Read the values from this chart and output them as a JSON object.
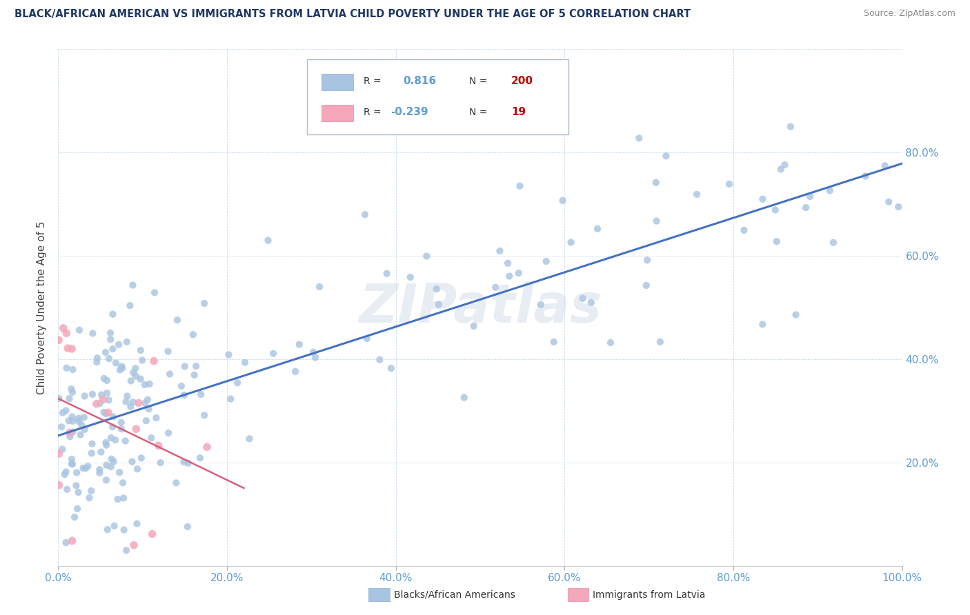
{
  "title": "BLACK/AFRICAN AMERICAN VS IMMIGRANTS FROM LATVIA CHILD POVERTY UNDER THE AGE OF 5 CORRELATION CHART",
  "source": "Source: ZipAtlas.com",
  "ylabel": "Child Poverty Under the Age of 5",
  "r_blue": 0.816,
  "n_blue": 200,
  "r_pink": -0.239,
  "n_pink": 19,
  "blue_color": "#a8c4e0",
  "pink_color": "#f4a7b9",
  "blue_line_color": "#4472c4",
  "pink_line_color": "#d45f7a",
  "title_color": "#1f3864",
  "tick_color": "#5b9bd5",
  "watermark": "ZIPatlas",
  "xlim": [
    0,
    1.0
  ],
  "ylim": [
    0,
    1.0
  ],
  "xticks": [
    0.0,
    0.2,
    0.4,
    0.6,
    0.8,
    1.0
  ],
  "yticks": [
    0.0,
    0.2,
    0.4,
    0.6,
    0.8,
    1.0
  ],
  "xticklabels": [
    "0.0%",
    "20.0%",
    "40.0%",
    "60.0%",
    "80.0%",
    "100.0%"
  ],
  "yticklabels_right": [
    "",
    "20.0%",
    "40.0%",
    "60.0%",
    "80.0%",
    ""
  ],
  "blue_seed": 12,
  "pink_seed": 99,
  "figsize": [
    14.06,
    8.92
  ],
  "dpi": 100
}
